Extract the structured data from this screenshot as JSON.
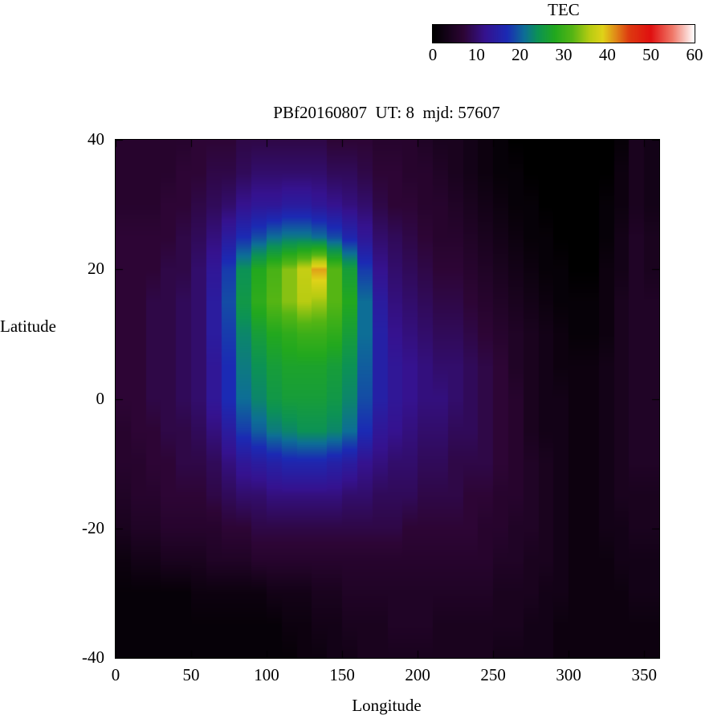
{
  "colorbar": {
    "title": "TEC",
    "tick_values": [
      0,
      10,
      20,
      30,
      40,
      50,
      60
    ],
    "min": 0,
    "max": 60
  },
  "plot": {
    "title": "PBf20160807  UT: 8  mjd: 57607",
    "xlabel": "Longitude",
    "ylabel": "Latitude",
    "x_tick_values": [
      0,
      50,
      100,
      150,
      200,
      250,
      300,
      350
    ],
    "y_tick_values": [
      40,
      20,
      0,
      -20,
      -40
    ]
  },
  "chart_data": {
    "type": "heatmap",
    "title": "PBf20160807  UT: 8  mjd: 57607",
    "xlabel": "Longitude",
    "ylabel": "Latitude",
    "zlabel": "TEC",
    "xlim": [
      0,
      360
    ],
    "ylim": [
      -40,
      40
    ],
    "zlim": [
      0,
      60
    ],
    "grid": false,
    "legend_position": "top-right-colorbar",
    "x": [
      0,
      10,
      20,
      30,
      40,
      50,
      60,
      70,
      80,
      90,
      100,
      110,
      120,
      130,
      140,
      150,
      160,
      170,
      180,
      190,
      200,
      210,
      220,
      230,
      240,
      250,
      260,
      270,
      280,
      290,
      300,
      310,
      320,
      330,
      340,
      350
    ],
    "y": [
      40,
      35,
      30,
      25,
      20,
      15,
      10,
      5,
      0,
      -5,
      -10,
      -15,
      -20,
      -25,
      -30,
      -35,
      -40
    ],
    "values": [
      [
        6,
        6,
        6,
        6,
        6,
        7,
        7,
        7,
        8,
        8,
        8,
        8,
        8,
        8,
        7,
        7,
        7,
        6,
        6,
        6,
        5,
        4,
        4,
        3,
        2,
        1,
        0,
        0,
        0,
        0,
        0,
        0,
        0,
        1,
        4,
        3
      ],
      [
        6,
        6,
        6,
        6,
        7,
        7,
        8,
        8,
        9,
        10,
        10,
        10,
        10,
        10,
        9,
        9,
        8,
        7,
        7,
        6,
        6,
        5,
        4,
        3,
        2,
        1,
        1,
        0,
        0,
        0,
        0,
        0,
        0,
        2,
        4,
        3
      ],
      [
        6,
        6,
        6,
        7,
        7,
        8,
        9,
        10,
        12,
        13,
        13,
        14,
        14,
        13,
        12,
        11,
        10,
        8,
        7,
        7,
        6,
        6,
        5,
        4,
        3,
        2,
        1,
        1,
        0,
        0,
        0,
        0,
        1,
        2,
        4,
        3
      ],
      [
        7,
        7,
        7,
        7,
        8,
        9,
        11,
        14,
        17,
        19,
        21,
        22,
        22,
        21,
        19,
        16,
        13,
        10,
        9,
        8,
        7,
        6,
        6,
        5,
        4,
        3,
        2,
        1,
        1,
        0,
        0,
        0,
        1,
        3,
        5,
        4
      ],
      [
        7,
        7,
        7,
        8,
        8,
        10,
        13,
        18,
        24,
        28,
        31,
        34,
        37,
        41,
        32,
        26,
        18,
        12,
        10,
        9,
        8,
        7,
        7,
        6,
        5,
        4,
        3,
        2,
        1,
        1,
        0,
        0,
        2,
        3,
        5,
        4
      ],
      [
        7,
        7,
        8,
        8,
        9,
        10,
        14,
        19,
        25,
        29,
        32,
        34,
        36,
        35,
        32,
        28,
        21,
        14,
        11,
        10,
        9,
        8,
        8,
        7,
        6,
        5,
        4,
        3,
        2,
        1,
        1,
        1,
        2,
        4,
        5,
        5
      ],
      [
        7,
        7,
        8,
        8,
        9,
        10,
        14,
        18,
        23,
        26,
        28,
        29,
        30,
        30,
        29,
        26,
        21,
        15,
        12,
        11,
        10,
        9,
        9,
        8,
        7,
        6,
        5,
        4,
        3,
        2,
        1,
        1,
        2,
        4,
        5,
        5
      ],
      [
        7,
        7,
        8,
        8,
        9,
        10,
        13,
        17,
        22,
        24,
        26,
        27,
        27,
        27,
        26,
        24,
        20,
        15,
        13,
        12,
        11,
        10,
        10,
        9,
        8,
        7,
        5,
        4,
        3,
        2,
        2,
        2,
        3,
        4,
        5,
        5
      ],
      [
        7,
        7,
        8,
        8,
        9,
        10,
        13,
        17,
        21,
        23,
        25,
        26,
        26,
        26,
        25,
        23,
        19,
        15,
        13,
        12,
        11,
        11,
        10,
        9,
        8,
        7,
        6,
        4,
        3,
        3,
        2,
        2,
        3,
        4,
        5,
        5
      ],
      [
        6,
        7,
        7,
        8,
        8,
        9,
        11,
        14,
        18,
        20,
        22,
        23,
        24,
        24,
        23,
        21,
        17,
        13,
        12,
        11,
        10,
        10,
        9,
        9,
        8,
        7,
        6,
        4,
        3,
        3,
        2,
        2,
        3,
        4,
        5,
        5
      ],
      [
        6,
        6,
        7,
        7,
        8,
        8,
        9,
        11,
        13,
        14,
        15,
        16,
        16,
        16,
        15,
        14,
        12,
        11,
        10,
        10,
        9,
        9,
        8,
        8,
        8,
        7,
        6,
        5,
        4,
        3,
        2,
        2,
        3,
        4,
        5,
        5
      ],
      [
        5,
        6,
        6,
        7,
        7,
        7,
        8,
        9,
        10,
        10,
        11,
        11,
        11,
        11,
        11,
        10,
        10,
        9,
        9,
        9,
        8,
        8,
        8,
        7,
        7,
        6,
        6,
        5,
        4,
        3,
        2,
        2,
        3,
        4,
        4,
        4
      ],
      [
        4,
        5,
        5,
        6,
        6,
        6,
        6,
        7,
        7,
        8,
        8,
        8,
        8,
        8,
        8,
        8,
        8,
        8,
        8,
        7,
        7,
        7,
        7,
        7,
        6,
        6,
        5,
        5,
        4,
        3,
        2,
        2,
        3,
        3,
        4,
        4
      ],
      [
        2,
        3,
        3,
        4,
        4,
        4,
        5,
        5,
        5,
        6,
        6,
        6,
        6,
        6,
        6,
        6,
        6,
        6,
        6,
        6,
        6,
        6,
        6,
        6,
        6,
        5,
        5,
        4,
        4,
        3,
        2,
        2,
        2,
        3,
        3,
        3
      ],
      [
        1,
        1,
        1,
        1,
        1,
        2,
        2,
        2,
        2,
        2,
        3,
        3,
        3,
        4,
        4,
        5,
        5,
        5,
        5,
        5,
        5,
        5,
        5,
        5,
        5,
        4,
        4,
        4,
        3,
        3,
        2,
        2,
        2,
        2,
        3,
        3
      ],
      [
        1,
        1,
        1,
        1,
        1,
        1,
        1,
        1,
        1,
        1,
        1,
        2,
        2,
        3,
        3,
        4,
        4,
        4,
        5,
        5,
        5,
        4,
        4,
        4,
        4,
        4,
        4,
        3,
        3,
        2,
        2,
        2,
        2,
        2,
        2,
        2
      ],
      [
        1,
        1,
        1,
        1,
        1,
        1,
        1,
        1,
        1,
        1,
        1,
        1,
        2,
        2,
        3,
        3,
        4,
        4,
        4,
        4,
        4,
        4,
        4,
        4,
        4,
        3,
        3,
        3,
        3,
        2,
        2,
        2,
        2,
        2,
        2,
        2
      ]
    ],
    "colormap_stops": [
      [
        0,
        "#000000"
      ],
      [
        7,
        "#2d0535"
      ],
      [
        12,
        "#35128f"
      ],
      [
        17,
        "#1b2ab4"
      ],
      [
        21,
        "#0d6e96"
      ],
      [
        24,
        "#0c9255"
      ],
      [
        28,
        "#22a81e"
      ],
      [
        32,
        "#55b514"
      ],
      [
        36,
        "#b8cc12"
      ],
      [
        39,
        "#e0d218"
      ],
      [
        42,
        "#e08818"
      ],
      [
        45,
        "#dd3a10"
      ],
      [
        50,
        "#e01010"
      ],
      [
        55,
        "#f07868"
      ],
      [
        60,
        "#ffffff"
      ]
    ]
  }
}
